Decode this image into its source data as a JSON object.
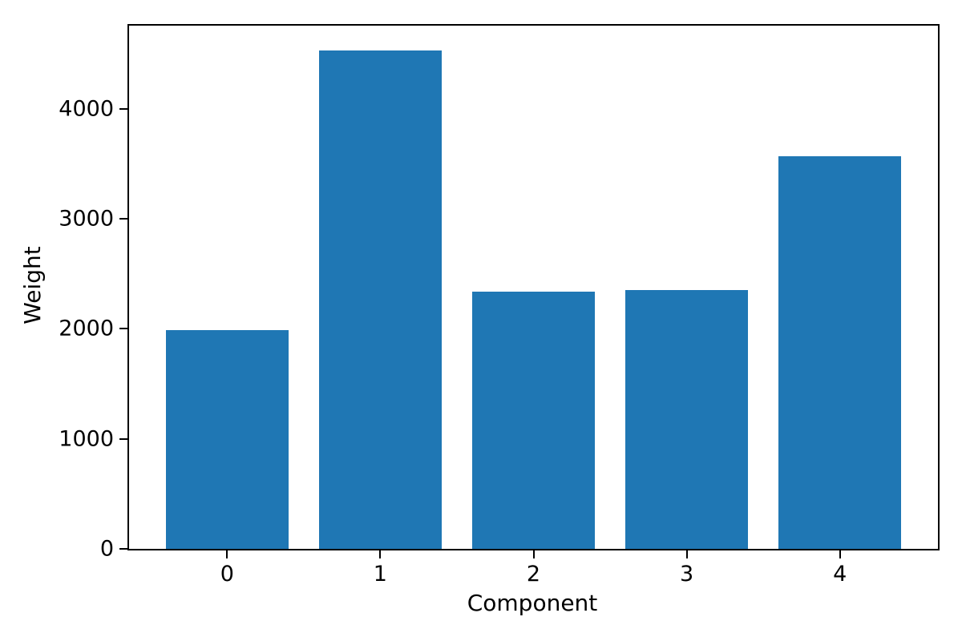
{
  "chart_data": {
    "type": "bar",
    "title": "",
    "xlabel": "Component",
    "ylabel": "Weight",
    "categories": [
      "0",
      "1",
      "2",
      "3",
      "4"
    ],
    "values": [
      1990,
      4530,
      2340,
      2350,
      3570
    ],
    "yticks": [
      0,
      1000,
      2000,
      3000,
      4000
    ],
    "ytick_labels": [
      "0",
      "1000",
      "2000",
      "3000",
      "4000"
    ],
    "xlim": [
      -0.64,
      4.64
    ],
    "ylim": [
      0,
      4755
    ],
    "bar_width": 0.8,
    "bar_color": "#1f77b4",
    "grid": false,
    "legend_position": "none"
  },
  "figure": {
    "background_color": "#ffffff",
    "spine_color": "#000000",
    "tick_color": "#000000"
  }
}
